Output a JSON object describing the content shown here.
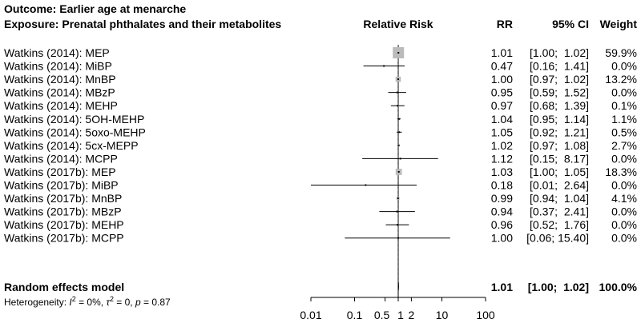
{
  "chart_data": {
    "type": "forest",
    "title": "Outcome: Earlier age at menarche",
    "subtitle": "Exposure: Prenatal phthalates and their metabolites",
    "column_headers": {
      "plot": "Relative Risk",
      "rr": "RR",
      "ci": "95% CI",
      "weight": "Weight"
    },
    "x_scale": "log",
    "xlim": [
      0.01,
      100
    ],
    "x_ticks": [
      {
        "value": 0.01,
        "label": "0.01"
      },
      {
        "value": 0.1,
        "label": "0.1"
      },
      {
        "value": 0.5,
        "label": "0.5"
      },
      {
        "value": 1,
        "label": "1"
      },
      {
        "value": 2,
        "label": "2"
      },
      {
        "value": 10,
        "label": "10"
      },
      {
        "value": 100,
        "label": "100"
      }
    ],
    "studies": [
      {
        "label": "Watkins (2014): MEP",
        "rr": 1.01,
        "lo": 1.0,
        "hi": 1.02,
        "rr_text": "1.01",
        "ci_text": "[1.00;  1.02]",
        "weight_text": "59.9%",
        "weight": 59.9
      },
      {
        "label": "Watkins (2014): MiBP",
        "rr": 0.47,
        "lo": 0.16,
        "hi": 1.41,
        "rr_text": "0.47",
        "ci_text": "[0.16;  1.41]",
        "weight_text": "0.0%",
        "weight": 0.0
      },
      {
        "label": "Watkins (2014): MnBP",
        "rr": 1.0,
        "lo": 0.97,
        "hi": 1.02,
        "rr_text": "1.00",
        "ci_text": "[0.97;  1.02]",
        "weight_text": "13.2%",
        "weight": 13.2
      },
      {
        "label": "Watkins (2014): MBzP",
        "rr": 0.95,
        "lo": 0.59,
        "hi": 1.52,
        "rr_text": "0.95",
        "ci_text": "[0.59;  1.52]",
        "weight_text": "0.0%",
        "weight": 0.0
      },
      {
        "label": "Watkins (2014): MEHP",
        "rr": 0.97,
        "lo": 0.68,
        "hi": 1.39,
        "rr_text": "0.97",
        "ci_text": "[0.68;  1.39]",
        "weight_text": "0.1%",
        "weight": 0.1
      },
      {
        "label": "Watkins (2014): 5OH-MEHP",
        "rr": 1.04,
        "lo": 0.95,
        "hi": 1.14,
        "rr_text": "1.04",
        "ci_text": "[0.95;  1.14]",
        "weight_text": "1.1%",
        "weight": 1.1
      },
      {
        "label": "Watkins (2014): 5oxo-MEHP",
        "rr": 1.05,
        "lo": 0.92,
        "hi": 1.21,
        "rr_text": "1.05",
        "ci_text": "[0.92;  1.21]",
        "weight_text": "0.5%",
        "weight": 0.5
      },
      {
        "label": "Watkins (2014): 5cx-MEPP",
        "rr": 1.02,
        "lo": 0.97,
        "hi": 1.08,
        "rr_text": "1.02",
        "ci_text": "[0.97;  1.08]",
        "weight_text": "2.7%",
        "weight": 2.7
      },
      {
        "label": "Watkins (2014): MCPP",
        "rr": 1.12,
        "lo": 0.15,
        "hi": 8.17,
        "rr_text": "1.12",
        "ci_text": "[0.15;  8.17]",
        "weight_text": "0.0%",
        "weight": 0.0
      },
      {
        "label": "Watkins (2017b): MEP",
        "rr": 1.03,
        "lo": 1.0,
        "hi": 1.05,
        "rr_text": "1.03",
        "ci_text": "[1.00;  1.05]",
        "weight_text": "18.3%",
        "weight": 18.3
      },
      {
        "label": "Watkins (2017b): MiBP",
        "rr": 0.18,
        "lo": 0.01,
        "hi": 2.64,
        "rr_text": "0.18",
        "ci_text": "[0.01;  2.64]",
        "weight_text": "0.0%",
        "weight": 0.0
      },
      {
        "label": "Watkins (2017b): MnBP",
        "rr": 0.99,
        "lo": 0.94,
        "hi": 1.04,
        "rr_text": "0.99",
        "ci_text": "[0.94;  1.04]",
        "weight_text": "4.1%",
        "weight": 4.1
      },
      {
        "label": "Watkins (2017b): MBzP",
        "rr": 0.94,
        "lo": 0.37,
        "hi": 2.41,
        "rr_text": "0.94",
        "ci_text": "[0.37;  2.41]",
        "weight_text": "0.0%",
        "weight": 0.0
      },
      {
        "label": "Watkins (2017b): MEHP",
        "rr": 0.96,
        "lo": 0.52,
        "hi": 1.76,
        "rr_text": "0.96",
        "ci_text": "[0.52;  1.76]",
        "weight_text": "0.0%",
        "weight": 0.0
      },
      {
        "label": "Watkins (2017b): MCPP",
        "rr": 1.0,
        "lo": 0.06,
        "hi": 15.4,
        "rr_text": "1.00",
        "ci_text": "[0.06; 15.40]",
        "weight_text": "0.0%",
        "weight": 0.0
      }
    ],
    "summary": {
      "label": "Random effects model",
      "rr": 1.01,
      "lo": 1.0,
      "hi": 1.02,
      "rr_text": "1.01",
      "ci_text": "[1.00;  1.02]",
      "weight_text": "100.0%"
    },
    "heterogeneity": {
      "prefix": "Heterogeneity: ",
      "i2_symbol": "I",
      "i2_value": " = 0%, ",
      "tau2_symbol": "τ",
      "tau2_value": " = 0, ",
      "p_symbol": "p",
      "p_value": " = 0.87",
      "sup": "2"
    },
    "colors": {
      "box": "#bbbbbb",
      "line": "#000000",
      "ref": "#000000"
    }
  }
}
